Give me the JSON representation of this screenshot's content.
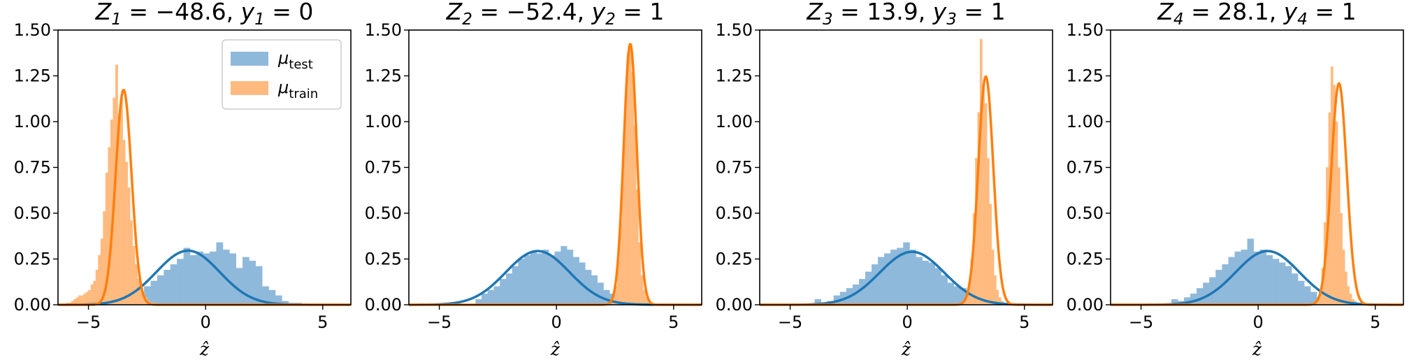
{
  "chart_data": [
    {
      "type": "histogram",
      "title": "Z1 = −48.6, y1 = 0",
      "title_parts": {
        "Z": "Z",
        "sub": "1",
        "z_value": " = −48.6, ",
        "y": "y",
        "y_value": " = 0"
      },
      "xlabel": "ẑ",
      "ylabel": "",
      "xlim": [
        -6.3,
        6.2
      ],
      "ylim": [
        0,
        1.5
      ],
      "xticks": [
        -5,
        0,
        5
      ],
      "xtick_labels": [
        "−5",
        "0",
        "5"
      ],
      "yticks": [
        0,
        0.25,
        0.5,
        0.75,
        1.0,
        1.25,
        1.5
      ],
      "ytick_labels": [
        "0.00",
        "0.25",
        "0.50",
        "0.75",
        "1.00",
        "1.25",
        "1.50"
      ],
      "legend": {
        "placement": "upper right",
        "entries": [
          {
            "symbol": "μ",
            "sub": "test"
          },
          {
            "symbol": "μ",
            "sub": "train"
          }
        ]
      },
      "series": [
        {
          "name": "μtest",
          "color": "#1f77b4",
          "hist_color": "#8fb9db",
          "fit": {
            "mean": -0.75,
            "std": 1.35
          },
          "bins": {
            "start": -4.3,
            "width": 0.28,
            "heights": [
              0.01,
              0.02,
              0.03,
              0.05,
              0.08,
              0.06,
              0.1,
              0.13,
              0.16,
              0.19,
              0.22,
              0.25,
              0.31,
              0.27,
              0.29,
              0.28,
              0.29,
              0.34,
              0.3,
              0.28,
              0.2,
              0.26,
              0.24,
              0.21,
              0.1,
              0.08,
              0.05,
              0.02,
              0.01,
              0.01
            ]
          }
        },
        {
          "name": "μtrain",
          "color": "#ff7f0e",
          "hist_color": "#ffbb7f",
          "fit": {
            "mean": -3.5,
            "std": 0.34
          },
          "bins": {
            "start": -5.95,
            "width": 0.105,
            "heights": [
              0.01,
              0.01,
              0.02,
              0.03,
              0.04,
              0.05,
              0.05,
              0.06,
              0.07,
              0.08,
              0.11,
              0.13,
              0.19,
              0.27,
              0.36,
              0.51,
              0.72,
              0.86,
              1.01,
              1.13,
              1.31,
              1.04,
              1.13,
              0.9,
              0.78,
              0.64,
              0.46,
              0.32,
              0.22,
              0.14,
              0.09,
              0.06,
              0.04,
              0.02,
              0.01,
              0.01
            ]
          }
        }
      ]
    },
    {
      "type": "histogram",
      "title": "Z2 = −52.4, y2 = 1",
      "title_parts": {
        "Z": "Z",
        "sub": "2",
        "z_value": " = −52.4, ",
        "y": "y",
        "y_value": " = 1"
      },
      "xlabel": "ẑ",
      "ylabel": "",
      "xlim": [
        -6.3,
        6.2
      ],
      "ylim": [
        0,
        1.5
      ],
      "xticks": [
        -5,
        0,
        5
      ],
      "xtick_labels": [
        "−5",
        "0",
        "5"
      ],
      "yticks": [
        0,
        0.25,
        0.5,
        0.75,
        1.0,
        1.25,
        1.5
      ],
      "ytick_labels": [
        "0.00",
        "0.25",
        "0.50",
        "0.75",
        "1.00",
        "1.25",
        "1.50"
      ],
      "series": [
        {
          "name": "μtest",
          "color": "#1f77b4",
          "hist_color": "#8fb9db",
          "fit": {
            "mean": -0.8,
            "std": 1.36
          },
          "bins": {
            "start": -3.45,
            "width": 0.26,
            "heights": [
              0.03,
              0.06,
              0.08,
              0.1,
              0.14,
              0.17,
              0.21,
              0.25,
              0.27,
              0.29,
              0.28,
              0.3,
              0.27,
              0.29,
              0.32,
              0.3,
              0.26,
              0.23,
              0.19,
              0.16,
              0.12,
              0.08,
              0.06,
              0.04,
              0.02,
              0.01
            ]
          }
        },
        {
          "name": "μtrain",
          "color": "#ff7f0e",
          "hist_color": "#ffbb7f",
          "fit": {
            "mean": 3.15,
            "std": 0.28
          },
          "bins": {
            "start": 2.4,
            "width": 0.1,
            "heights": [
              0.04,
              0.1,
              0.24,
              0.45,
              0.8,
              1.05,
              1.37,
              1.41,
              1.27,
              0.98,
              0.63,
              0.34,
              0.16,
              0.08,
              0.04,
              0.02
            ]
          }
        }
      ]
    },
    {
      "type": "histogram",
      "title": "Z3 = 13.9, y3 = 1",
      "title_parts": {
        "Z": "Z",
        "sub": "3",
        "z_value": " = 13.9, ",
        "y": "y",
        "y_value": " = 1"
      },
      "xlabel": "ẑ",
      "ylabel": "",
      "xlim": [
        -6.3,
        6.2
      ],
      "ylim": [
        0,
        1.5
      ],
      "xticks": [
        -5,
        0,
        5
      ],
      "xtick_labels": [
        "−5",
        "0",
        "5"
      ],
      "yticks": [
        0,
        0.25,
        0.5,
        0.75,
        1.0,
        1.25,
        1.5
      ],
      "ytick_labels": [
        "0.00",
        "0.25",
        "0.50",
        "0.75",
        "1.00",
        "1.25",
        "1.50"
      ],
      "series": [
        {
          "name": "μtest",
          "color": "#1f77b4",
          "hist_color": "#8fb9db",
          "fit": {
            "mean": 0.2,
            "std": 1.38
          },
          "bins": {
            "start": -3.95,
            "width": 0.27,
            "heights": [
              0.03,
              0.01,
              0.02,
              0.05,
              0.07,
              0.09,
              0.11,
              0.14,
              0.18,
              0.22,
              0.26,
              0.28,
              0.3,
              0.31,
              0.34,
              0.3,
              0.26,
              0.24,
              0.23,
              0.2,
              0.16,
              0.12,
              0.1,
              0.09,
              0.05,
              0.02,
              0.01
            ]
          }
        },
        {
          "name": "μtrain",
          "color": "#ff7f0e",
          "hist_color": "#ffbb7f",
          "fit": {
            "mean": 3.35,
            "std": 0.32
          },
          "bins": {
            "start": 2.4,
            "width": 0.1,
            "heights": [
              0.02,
              0.05,
              0.12,
              0.25,
              0.5,
              0.8,
              1.05,
              1.45,
              1.2,
              1.1,
              0.8,
              0.55,
              0.3,
              0.16,
              0.08,
              0.04,
              0.02,
              0.01
            ]
          }
        }
      ]
    },
    {
      "type": "histogram",
      "title": "Z4 = 28.1, y4 = 1",
      "title_parts": {
        "Z": "Z",
        "sub": "4",
        "z_value": " = 28.1, ",
        "y": "y",
        "y_value": " = 1"
      },
      "xlabel": "ẑ",
      "ylabel": "",
      "xlim": [
        -6.3,
        6.2
      ],
      "ylim": [
        0,
        1.5
      ],
      "xticks": [
        -5,
        0,
        5
      ],
      "xtick_labels": [
        "−5",
        "0",
        "5"
      ],
      "yticks": [
        0,
        0.25,
        0.5,
        0.75,
        1.0,
        1.25,
        1.5
      ],
      "ytick_labels": [
        "0.00",
        "0.25",
        "0.50",
        "0.75",
        "1.00",
        "1.25",
        "1.50"
      ],
      "series": [
        {
          "name": "μtest",
          "color": "#1f77b4",
          "hist_color": "#8fb9db",
          "fit": {
            "mean": 0.4,
            "std": 1.36
          },
          "bins": {
            "start": -3.7,
            "width": 0.27,
            "heights": [
              0.03,
              0.02,
              0.04,
              0.06,
              0.09,
              0.12,
              0.15,
              0.19,
              0.22,
              0.26,
              0.29,
              0.3,
              0.36,
              0.29,
              0.3,
              0.27,
              0.25,
              0.23,
              0.21,
              0.17,
              0.13,
              0.1,
              0.07,
              0.04,
              0.02,
              0.01
            ]
          }
        },
        {
          "name": "μtrain",
          "color": "#ff7f0e",
          "hist_color": "#ffbb7f",
          "fit": {
            "mean": 3.45,
            "std": 0.33
          },
          "bins": {
            "start": 2.5,
            "width": 0.1,
            "heights": [
              0.03,
              0.08,
              0.2,
              0.45,
              0.75,
              1.05,
              1.3,
              1.2,
              1.0,
              0.75,
              0.5,
              0.3,
              0.18,
              0.1,
              0.06,
              0.03,
              0.02,
              0.01
            ]
          }
        }
      ]
    }
  ]
}
